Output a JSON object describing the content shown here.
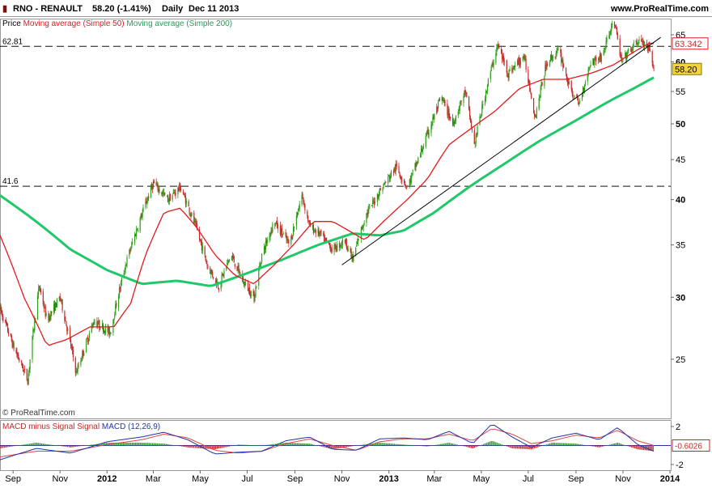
{
  "header": {
    "symbol": "RNO - RENAULT",
    "quote": "58.20 (-1.41%)",
    "period": "Daily",
    "date": "Dec 11 2013",
    "site": "www.ProRealTime.com"
  },
  "legend": {
    "price_label": "Price",
    "ma50_label": "Moving average (Simple 50)",
    "ma200_label": "Moving average (Simple 200)"
  },
  "watermark": "© ProRealTime.com",
  "colors": {
    "bull": "#2e9e1a",
    "bear": "#c62828",
    "ma50": "#e31a1c",
    "ma200": "#20c86a",
    "macd_line": "#2233aa",
    "signal_line": "#d44",
    "last_price_badge": "#f2d338"
  },
  "chart_data": [
    {
      "type": "line",
      "panel": "price",
      "scale": "log",
      "ylim": [
        21,
        68
      ],
      "y_ticks": [
        25,
        30,
        35,
        40,
        45,
        50,
        55,
        60,
        65
      ],
      "x_ticks": [
        "Sep",
        "Nov",
        "2012",
        "Mar",
        "May",
        "Jul",
        "Sep",
        "Nov",
        "2013",
        "Mar",
        "May",
        "Jul",
        "Sep",
        "Nov",
        "2014"
      ],
      "x_range": [
        "2011-08-15",
        "2014-01-02"
      ],
      "series": [
        {
          "name": "Price",
          "style": "candlestick",
          "x": [
            "2011-08-15",
            "2011-09-01",
            "2011-09-20",
            "2011-10-05",
            "2011-10-15",
            "2011-11-01",
            "2011-11-22",
            "2011-12-15",
            "2012-01-05",
            "2012-01-25",
            "2012-02-10",
            "2012-03-01",
            "2012-03-20",
            "2012-04-05",
            "2012-04-25",
            "2012-05-10",
            "2012-05-25",
            "2012-06-10",
            "2012-06-25",
            "2012-07-10",
            "2012-07-20",
            "2012-08-05",
            "2012-08-25",
            "2012-09-10",
            "2012-09-20",
            "2012-10-05",
            "2012-10-20",
            "2012-11-05",
            "2012-11-15",
            "2012-12-01",
            "2012-12-20",
            "2013-01-10",
            "2013-01-25",
            "2013-02-10",
            "2013-02-25",
            "2013-03-10",
            "2013-03-25",
            "2013-04-10",
            "2013-04-22",
            "2013-05-05",
            "2013-05-22",
            "2013-06-05",
            "2013-06-25",
            "2013-07-10",
            "2013-07-25",
            "2013-08-10",
            "2013-08-25",
            "2013-09-05",
            "2013-09-20",
            "2013-10-05",
            "2013-10-20",
            "2013-10-30",
            "2013-11-10",
            "2013-11-22",
            "2013-12-05",
            "2013-12-11"
          ],
          "values": [
            29,
            26,
            23.5,
            31,
            28,
            30,
            24,
            28,
            27,
            33,
            37,
            42,
            40,
            41.5,
            37,
            33,
            31,
            34,
            31.5,
            30,
            34,
            37.5,
            35,
            40.5,
            37,
            36,
            34.5,
            35.5,
            33.5,
            38,
            41,
            44,
            41.5,
            45.5,
            50,
            54,
            50,
            55,
            47,
            54,
            63,
            58,
            61,
            51,
            60,
            62,
            55,
            53,
            60,
            61,
            68,
            60,
            62,
            64,
            62,
            58.2
          ]
        },
        {
          "name": "Moving average (Simple 50)",
          "x": [
            "2011-08-15",
            "2011-09-15",
            "2011-10-15",
            "2011-11-10",
            "2011-12-10",
            "2012-01-10",
            "2012-02-01",
            "2012-02-20",
            "2012-03-15",
            "2012-04-05",
            "2012-04-25",
            "2012-05-20",
            "2012-06-15",
            "2012-07-10",
            "2012-08-05",
            "2012-08-30",
            "2012-09-25",
            "2012-10-20",
            "2012-11-10",
            "2012-12-01",
            "2012-12-25",
            "2013-01-25",
            "2013-02-20",
            "2013-03-20",
            "2013-04-20",
            "2013-05-20",
            "2013-06-20",
            "2013-07-20",
            "2013-08-20",
            "2013-09-20",
            "2013-10-20",
            "2013-11-20",
            "2013-12-05",
            "2013-12-11"
          ],
          "values": [
            36,
            30,
            26,
            26.5,
            27.5,
            27.5,
            29.5,
            34,
            38.5,
            39,
            37,
            34,
            32,
            31.2,
            33,
            35,
            37.5,
            37.5,
            36.5,
            35.5,
            37.5,
            40,
            42.5,
            47,
            49.5,
            52,
            55.5,
            57,
            57,
            58,
            59.5,
            62.2,
            63.4,
            63.34
          ]
        },
        {
          "name": "Moving average (Simple 200)",
          "x": [
            "2011-08-15",
            "2011-10-01",
            "2011-11-15",
            "2012-01-01",
            "2012-02-15",
            "2012-04-01",
            "2012-05-15",
            "2012-07-01",
            "2012-08-15",
            "2012-10-01",
            "2012-11-15",
            "2012-12-20",
            "2013-01-20",
            "2013-03-01",
            "2013-04-15",
            "2013-06-01",
            "2013-07-15",
            "2013-09-01",
            "2013-10-15",
            "2013-11-15",
            "2013-12-11"
          ],
          "values": [
            40.5,
            37.5,
            34.5,
            32.5,
            31.2,
            31.5,
            31,
            32.2,
            33.5,
            35,
            36.2,
            36,
            36.5,
            38.5,
            41.5,
            44.5,
            47.5,
            50.5,
            53.5,
            55.5,
            57.3
          ]
        }
      ],
      "hlines": [
        {
          "value": 62.81,
          "label": "62.81"
        },
        {
          "value": 41.6,
          "label": "41.6"
        }
      ],
      "trendline": {
        "x": [
          "2012-11-01",
          "2013-12-20"
        ],
        "values": [
          33,
          64.5
        ]
      },
      "last_values": [
        {
          "series": "Moving average (Simple 50)",
          "label": "63.342"
        },
        {
          "series": "Price",
          "label": "58.20"
        }
      ]
    },
    {
      "type": "bar",
      "panel": "macd",
      "title": "MACD minus Signal Signal MACD (12,26,9)",
      "ylim": [
        -2.6,
        2.6
      ],
      "y_ticks": [
        2,
        -2
      ],
      "zero_line": 0,
      "last_value": "-0.6026",
      "series": [
        {
          "name": "MACD",
          "x": [
            "2011-08-15",
            "2011-10-01",
            "2011-11-15",
            "2012-01-01",
            "2012-02-15",
            "2012-03-15",
            "2012-04-15",
            "2012-05-20",
            "2012-06-20",
            "2012-07-20",
            "2012-08-20",
            "2012-09-20",
            "2012-10-20",
            "2012-11-20",
            "2012-12-20",
            "2013-01-20",
            "2013-02-20",
            "2013-03-20",
            "2013-04-20",
            "2013-05-15",
            "2013-06-10",
            "2013-07-05",
            "2013-08-01",
            "2013-09-01",
            "2013-10-01",
            "2013-10-25",
            "2013-11-20",
            "2013-12-11"
          ],
          "values": [
            -1.5,
            -0.3,
            -0.8,
            0.4,
            0.9,
            1.4,
            0.6,
            -0.9,
            -0.7,
            -0.6,
            0.5,
            0.9,
            -0.4,
            -0.5,
            0.7,
            0.8,
            0.6,
            1.5,
            0.2,
            2.3,
            0.9,
            -0.2,
            0.8,
            1.3,
            0.6,
            1.9,
            0.1,
            -0.6
          ]
        },
        {
          "name": "Signal",
          "x": [
            "2011-08-15",
            "2011-10-01",
            "2011-11-15",
            "2012-01-01",
            "2012-02-15",
            "2012-03-15",
            "2012-04-15",
            "2012-05-20",
            "2012-06-20",
            "2012-07-20",
            "2012-08-20",
            "2012-09-20",
            "2012-10-20",
            "2012-11-20",
            "2012-12-20",
            "2013-01-20",
            "2013-02-20",
            "2013-03-20",
            "2013-04-20",
            "2013-05-15",
            "2013-06-10",
            "2013-07-05",
            "2013-08-01",
            "2013-09-01",
            "2013-10-01",
            "2013-10-25",
            "2013-11-20",
            "2013-12-11"
          ],
          "values": [
            -1.2,
            -0.6,
            -0.6,
            0.1,
            0.6,
            1.2,
            0.8,
            -0.5,
            -0.8,
            -0.6,
            0.2,
            0.7,
            0.0,
            -0.5,
            0.4,
            0.7,
            0.7,
            1.2,
            0.5,
            1.8,
            1.2,
            0.2,
            0.5,
            1.1,
            0.8,
            1.6,
            0.5,
            0.0
          ]
        }
      ]
    }
  ]
}
